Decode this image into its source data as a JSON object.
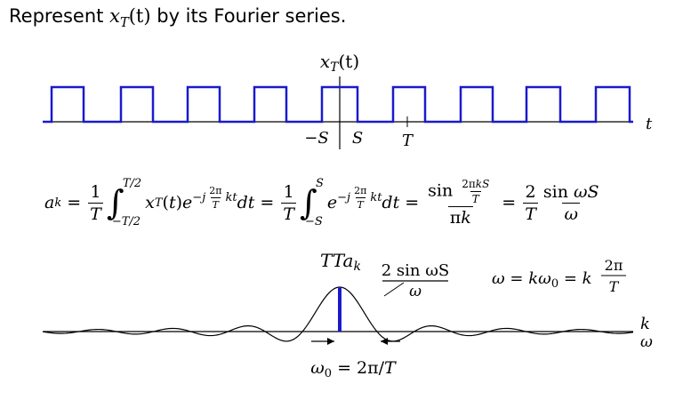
{
  "heading": {
    "prefix": "Represent",
    "signal_base": "x",
    "signal_sub": "T",
    "signal_arg": "(t)",
    "suffix": "by its Fourier series."
  },
  "square_wave": {
    "label": "x_T(t)",
    "label_base": "x",
    "label_sub": "T",
    "label_arg": "(t)",
    "time_axis_label": "t",
    "tick_labels": [
      "−S",
      "S",
      "T"
    ],
    "color": "#1a1acc"
  },
  "equation": {
    "a_k": "a",
    "a_k_sub": "k",
    "equals": "=",
    "one": "1",
    "T": "T",
    "upper_limit_1": "T/2",
    "lower_limit_1": "−T/2",
    "integrand_1": "x_T(t)e^{−j(2π/T)kt}dt",
    "upper_limit_2": "S",
    "lower_limit_2": "−S",
    "integrand_2": "e^{−j(2π/T)kt}dt",
    "sinc_num": "sin 2πkS/T",
    "sinc_den": "πk",
    "two": "2",
    "sin_omega_S": "sin ωS",
    "omega": "ω"
  },
  "spectrum": {
    "label_Tak": "Ta",
    "label_Tak_sub": "k",
    "envelope_num": "2 sin ωS",
    "envelope_den": "ω",
    "omega_relation": "ω = kω₀ = k 2π/T",
    "axis_k": "k",
    "axis_omega": "ω",
    "omega0_label": "ω₀ = 2π/T",
    "line_color": "#1a1acc"
  }
}
